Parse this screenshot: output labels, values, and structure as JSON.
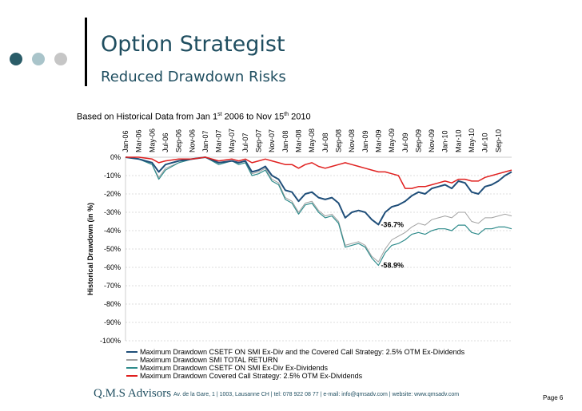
{
  "header": {
    "title": "Option Strategist",
    "subtitle": "Reduced Drawdown Risks"
  },
  "colors": {
    "accent": "#1f4e60",
    "dot_1": "#2a5c68",
    "dot_2": "#a9c4ca",
    "dot_3": "#c6c6c6"
  },
  "chart_data": {
    "type": "line",
    "basis": {
      "prefix": "Based on Historical Data from Jan 1",
      "sup1": "st",
      "mid": " 2006 to Nov 15",
      "sup2": "th",
      "suffix": " 2010"
    },
    "xlabel": "",
    "ylabel": "Historical Drawdown (in %)",
    "ylim": [
      -100,
      0
    ],
    "y_ticks": [
      "0%",
      "-10%",
      "-20%",
      "-30%",
      "-40%",
      "-50%",
      "-60%",
      "-70%",
      "-80%",
      "-90%",
      "-100%"
    ],
    "x_range": [
      "2006-01",
      "2010-11"
    ],
    "x_ticks": [
      "Jan-06",
      "Mar-06",
      "May-06",
      "Jul-06",
      "Sep-06",
      "Nov-06",
      "Jan-07",
      "Mar-07",
      "May-07",
      "Jul-07",
      "Sep-07",
      "Nov-07",
      "Jan-08",
      "Mar-08",
      "May-08",
      "Jul-08",
      "Sep-08",
      "Nov-08",
      "Jan-09",
      "Mar-09",
      "May-09",
      "Jul-09",
      "Sep-09",
      "Nov-09",
      "Jan-10",
      "Mar-10",
      "May-10",
      "Jul-10",
      "Sep-10"
    ],
    "grid": true,
    "legend_position": "bottom",
    "annotations": [
      {
        "text": "-36.7%",
        "x": "2009-03",
        "y": -36.7,
        "series": "Maximum Drawdown CSETF ON SMI Ex-Div and the Covered Call Strategy: 2.5% OTM Ex-Dividends"
      },
      {
        "text": "-58.9%",
        "x": "2009-03",
        "y": -58.9,
        "series": "Maximum Drawdown CSETF ON SMI Ex-Div Ex-Dividends"
      }
    ],
    "series": [
      {
        "name": "Maximum Drawdown CSETF ON SMI Ex-Div and the Covered Call Strategy: 2.5% OTM Ex-Dividends",
        "color": "#1f4e79",
        "width": 2,
        "points": [
          [
            "2006-01",
            0
          ],
          [
            "2006-03",
            -1
          ],
          [
            "2006-05",
            -3
          ],
          [
            "2006-06",
            -8
          ],
          [
            "2006-07",
            -4
          ],
          [
            "2006-09",
            -2
          ],
          [
            "2006-11",
            -1
          ],
          [
            "2007-01",
            0
          ],
          [
            "2007-03",
            -3
          ],
          [
            "2007-05",
            -2
          ],
          [
            "2007-06",
            -3
          ],
          [
            "2007-07",
            -2
          ],
          [
            "2007-08",
            -8
          ],
          [
            "2007-09",
            -7
          ],
          [
            "2007-10",
            -5
          ],
          [
            "2007-11",
            -10
          ],
          [
            "2007-12",
            -12
          ],
          [
            "2008-01",
            -18
          ],
          [
            "2008-02",
            -19
          ],
          [
            "2008-03",
            -24
          ],
          [
            "2008-04",
            -20
          ],
          [
            "2008-05",
            -19
          ],
          [
            "2008-06",
            -22
          ],
          [
            "2008-07",
            -23
          ],
          [
            "2008-08",
            -22
          ],
          [
            "2008-09",
            -25
          ],
          [
            "2008-10",
            -33
          ],
          [
            "2008-11",
            -30
          ],
          [
            "2008-12",
            -29
          ],
          [
            "2009-01",
            -30
          ],
          [
            "2009-02",
            -34
          ],
          [
            "2009-03",
            -36.7
          ],
          [
            "2009-04",
            -30
          ],
          [
            "2009-05",
            -27
          ],
          [
            "2009-06",
            -26
          ],
          [
            "2009-07",
            -24
          ],
          [
            "2009-08",
            -21
          ],
          [
            "2009-09",
            -19
          ],
          [
            "2009-10",
            -20
          ],
          [
            "2009-11",
            -17
          ],
          [
            "2009-12",
            -16
          ],
          [
            "2010-01",
            -15
          ],
          [
            "2010-02",
            -17
          ],
          [
            "2010-03",
            -13
          ],
          [
            "2010-04",
            -14
          ],
          [
            "2010-05",
            -19
          ],
          [
            "2010-06",
            -20
          ],
          [
            "2010-07",
            -16
          ],
          [
            "2010-08",
            -15
          ],
          [
            "2010-09",
            -13
          ],
          [
            "2010-10",
            -10
          ],
          [
            "2010-11",
            -8
          ]
        ]
      },
      {
        "name": "Maximum Drawdown SMI TOTAL RETURN",
        "color": "#a0a0a0",
        "width": 1,
        "points": [
          [
            "2006-01",
            0
          ],
          [
            "2006-03",
            -1
          ],
          [
            "2006-05",
            -4
          ],
          [
            "2006-06",
            -11
          ],
          [
            "2006-07",
            -6
          ],
          [
            "2006-09",
            -3
          ],
          [
            "2006-11",
            -1
          ],
          [
            "2007-01",
            0
          ],
          [
            "2007-03",
            -4
          ],
          [
            "2007-05",
            -2
          ],
          [
            "2007-06",
            -4
          ],
          [
            "2007-07",
            -3
          ],
          [
            "2007-08",
            -9
          ],
          [
            "2007-09",
            -8
          ],
          [
            "2007-10",
            -6
          ],
          [
            "2007-11",
            -12
          ],
          [
            "2007-12",
            -14
          ],
          [
            "2008-01",
            -22
          ],
          [
            "2008-02",
            -24
          ],
          [
            "2008-03",
            -30
          ],
          [
            "2008-04",
            -25
          ],
          [
            "2008-05",
            -24
          ],
          [
            "2008-06",
            -29
          ],
          [
            "2008-07",
            -32
          ],
          [
            "2008-08",
            -31
          ],
          [
            "2008-09",
            -35
          ],
          [
            "2008-10",
            -48
          ],
          [
            "2008-11",
            -47
          ],
          [
            "2008-12",
            -46
          ],
          [
            "2009-01",
            -48
          ],
          [
            "2009-02",
            -54
          ],
          [
            "2009-03",
            -57
          ],
          [
            "2009-04",
            -50
          ],
          [
            "2009-05",
            -45
          ],
          [
            "2009-06",
            -43
          ],
          [
            "2009-07",
            -41
          ],
          [
            "2009-08",
            -38
          ],
          [
            "2009-09",
            -36
          ],
          [
            "2009-10",
            -37
          ],
          [
            "2009-11",
            -34
          ],
          [
            "2009-12",
            -33
          ],
          [
            "2010-01",
            -32
          ],
          [
            "2010-02",
            -33
          ],
          [
            "2010-03",
            -30
          ],
          [
            "2010-04",
            -30
          ],
          [
            "2010-05",
            -35
          ],
          [
            "2010-06",
            -36
          ],
          [
            "2010-07",
            -33
          ],
          [
            "2010-08",
            -33
          ],
          [
            "2010-09",
            -32
          ],
          [
            "2010-10",
            -31
          ],
          [
            "2010-11",
            -32
          ]
        ]
      },
      {
        "name": "Maximum Drawdown CSETF ON SMI Ex-Div Ex-Dividends",
        "color": "#2e8b8b",
        "width": 1.2,
        "points": [
          [
            "2006-01",
            0
          ],
          [
            "2006-03",
            -1
          ],
          [
            "2006-05",
            -4
          ],
          [
            "2006-06",
            -12
          ],
          [
            "2006-07",
            -7
          ],
          [
            "2006-09",
            -3
          ],
          [
            "2006-11",
            -1
          ],
          [
            "2007-01",
            0
          ],
          [
            "2007-03",
            -4
          ],
          [
            "2007-05",
            -2
          ],
          [
            "2007-06",
            -4
          ],
          [
            "2007-07",
            -3
          ],
          [
            "2007-08",
            -10
          ],
          [
            "2007-09",
            -9
          ],
          [
            "2007-10",
            -7
          ],
          [
            "2007-11",
            -13
          ],
          [
            "2007-12",
            -15
          ],
          [
            "2008-01",
            -23
          ],
          [
            "2008-02",
            -25
          ],
          [
            "2008-03",
            -31
          ],
          [
            "2008-04",
            -26
          ],
          [
            "2008-05",
            -25
          ],
          [
            "2008-06",
            -30
          ],
          [
            "2008-07",
            -33
          ],
          [
            "2008-08",
            -32
          ],
          [
            "2008-09",
            -36
          ],
          [
            "2008-10",
            -49
          ],
          [
            "2008-11",
            -48
          ],
          [
            "2008-12",
            -47
          ],
          [
            "2009-01",
            -49
          ],
          [
            "2009-02",
            -55
          ],
          [
            "2009-03",
            -58.9
          ],
          [
            "2009-04",
            -52
          ],
          [
            "2009-05",
            -48
          ],
          [
            "2009-06",
            -47
          ],
          [
            "2009-07",
            -45
          ],
          [
            "2009-08",
            -42
          ],
          [
            "2009-09",
            -41
          ],
          [
            "2009-10",
            -42
          ],
          [
            "2009-11",
            -40
          ],
          [
            "2009-12",
            -39
          ],
          [
            "2010-01",
            -39
          ],
          [
            "2010-02",
            -40
          ],
          [
            "2010-03",
            -37
          ],
          [
            "2010-04",
            -37
          ],
          [
            "2010-05",
            -41
          ],
          [
            "2010-06",
            -42
          ],
          [
            "2010-07",
            -39
          ],
          [
            "2010-08",
            -39
          ],
          [
            "2010-09",
            -38
          ],
          [
            "2010-10",
            -38
          ],
          [
            "2010-11",
            -39
          ]
        ]
      },
      {
        "name": "Maximum Drawdown Covered Call Strategy: 2.5% OTM Ex-Dividends",
        "color": "#e0201f",
        "width": 1.5,
        "points": [
          [
            "2006-01",
            0
          ],
          [
            "2006-03",
            0
          ],
          [
            "2006-05",
            -1
          ],
          [
            "2006-06",
            -3
          ],
          [
            "2006-07",
            -2
          ],
          [
            "2006-09",
            -1
          ],
          [
            "2006-11",
            -1
          ],
          [
            "2007-01",
            0
          ],
          [
            "2007-03",
            -2
          ],
          [
            "2007-05",
            -1
          ],
          [
            "2007-06",
            -2
          ],
          [
            "2007-07",
            -1
          ],
          [
            "2007-08",
            -3
          ],
          [
            "2007-09",
            -2
          ],
          [
            "2007-10",
            -1
          ],
          [
            "2007-11",
            -2
          ],
          [
            "2007-12",
            -3
          ],
          [
            "2008-01",
            -4
          ],
          [
            "2008-02",
            -4
          ],
          [
            "2008-03",
            -6
          ],
          [
            "2008-04",
            -4
          ],
          [
            "2008-05",
            -3
          ],
          [
            "2008-06",
            -5
          ],
          [
            "2008-07",
            -6
          ],
          [
            "2008-08",
            -5
          ],
          [
            "2008-09",
            -4
          ],
          [
            "2008-10",
            -3
          ],
          [
            "2008-11",
            -4
          ],
          [
            "2008-12",
            -5
          ],
          [
            "2009-01",
            -6
          ],
          [
            "2009-02",
            -7
          ],
          [
            "2009-03",
            -8
          ],
          [
            "2009-04",
            -8
          ],
          [
            "2009-05",
            -9
          ],
          [
            "2009-06",
            -10
          ],
          [
            "2009-07",
            -17
          ],
          [
            "2009-08",
            -17
          ],
          [
            "2009-09",
            -16
          ],
          [
            "2009-10",
            -16
          ],
          [
            "2009-11",
            -15
          ],
          [
            "2009-12",
            -14
          ],
          [
            "2010-01",
            -13
          ],
          [
            "2010-02",
            -14
          ],
          [
            "2010-03",
            -12
          ],
          [
            "2010-04",
            -12
          ],
          [
            "2010-05",
            -13
          ],
          [
            "2010-06",
            -13
          ],
          [
            "2010-07",
            -11
          ],
          [
            "2010-08",
            -10
          ],
          [
            "2010-09",
            -9
          ],
          [
            "2010-10",
            -8
          ],
          [
            "2010-11",
            -7
          ]
        ]
      }
    ]
  },
  "footer": {
    "brand": "Q.M.S Advisors",
    "contact": "Av. de la Gare, 1 | 1003, Lausanne CH | tel: 078 922 08 77 | e-mail: info@qmsadv.com | website: www.qmsadv.com",
    "page": "Page 6"
  }
}
